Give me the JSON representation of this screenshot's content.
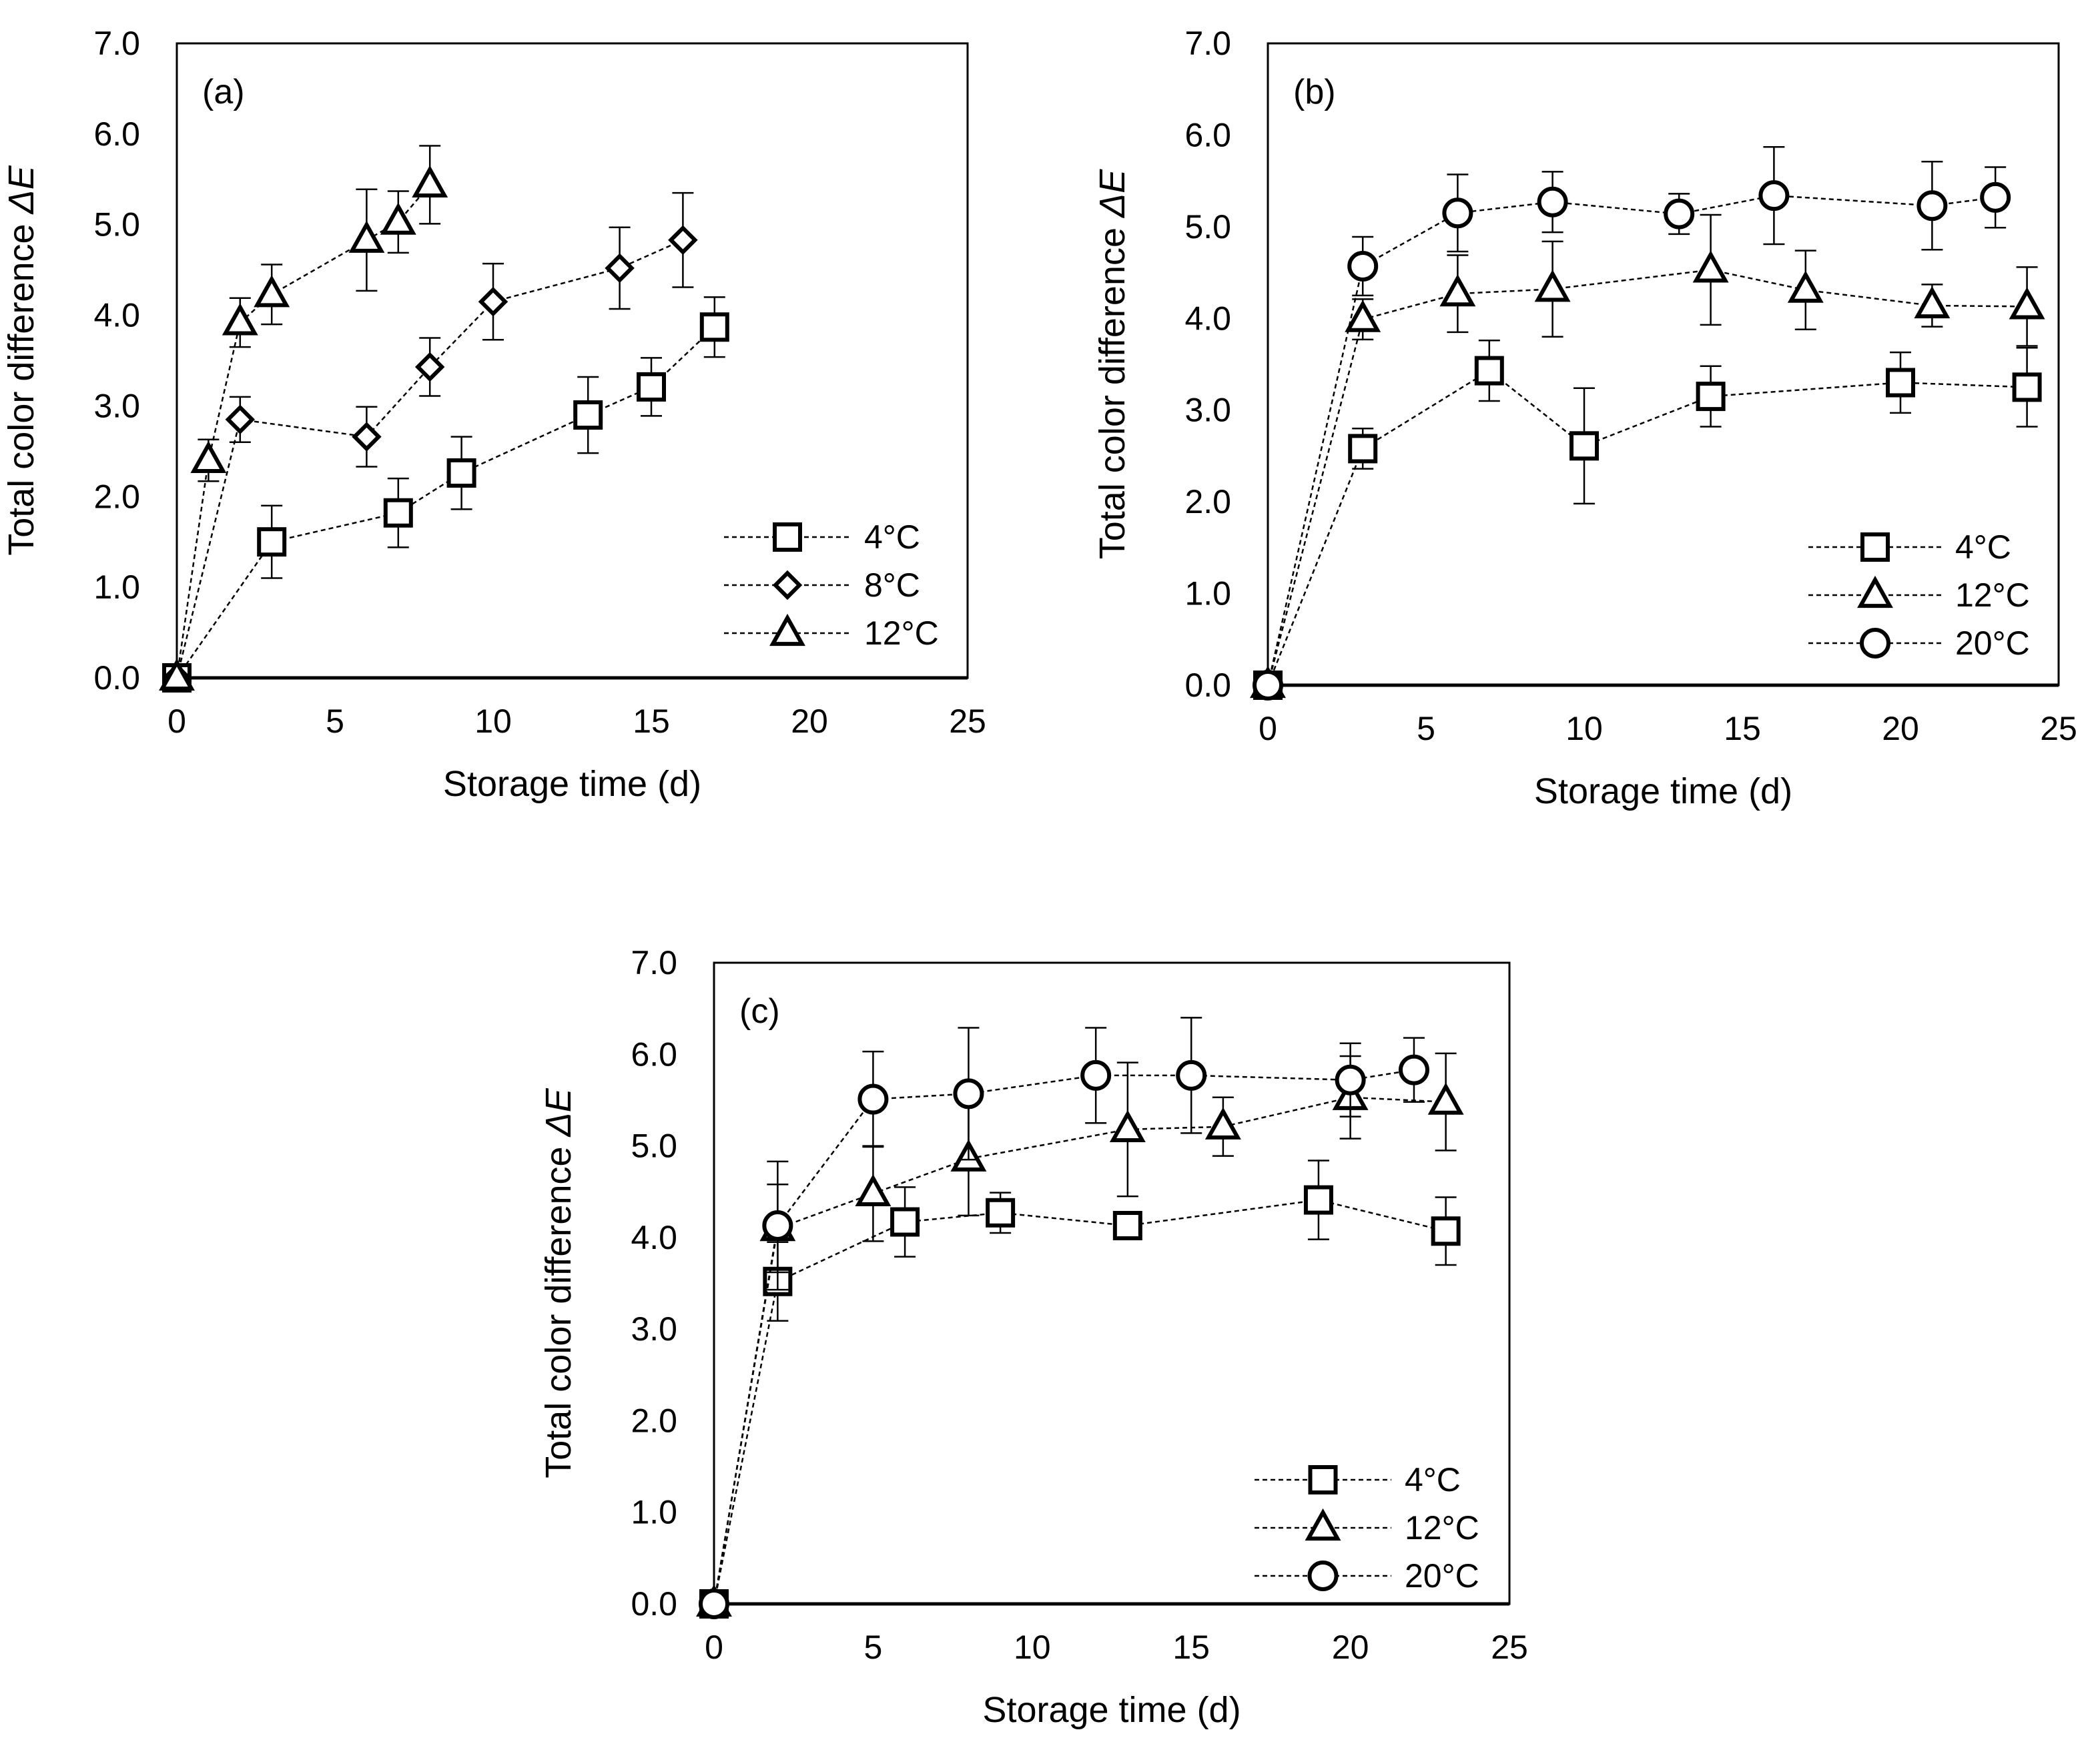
{
  "figure": {
    "panels": [
      "(a)",
      "(b)",
      "(c)"
    ]
  },
  "chart_data": [
    {
      "type": "scatter",
      "panel_label": "(a)",
      "xlabel": "Storage time (d)",
      "ylabel": "Total color difference ",
      "ylabel_italic": "ΔE",
      "xlim": [
        0,
        25
      ],
      "ylim": [
        0,
        7
      ],
      "xticks": [
        "0",
        "5",
        "10",
        "15",
        "20",
        "25"
      ],
      "yticks": [
        "0.0",
        "1.0",
        "2.0",
        "3.0",
        "4.0",
        "5.0",
        "6.0",
        "7.0"
      ],
      "legend_position": "bottom-right",
      "series": [
        {
          "name": "4°C",
          "marker": "square",
          "x": [
            0,
            3,
            7,
            9,
            13,
            15,
            17
          ],
          "y": [
            0,
            1.5,
            1.82,
            2.26,
            2.9,
            3.21,
            3.87
          ],
          "err": [
            0,
            0.4,
            0.38,
            0.4,
            0.42,
            0.32,
            0.33
          ]
        },
        {
          "name": "8°C",
          "marker": "diamond",
          "x": [
            0,
            2,
            6,
            8,
            10,
            14,
            16
          ],
          "y": [
            0,
            2.85,
            2.66,
            3.43,
            4.15,
            4.52,
            4.83
          ],
          "err": [
            0,
            0.25,
            0.33,
            0.32,
            0.42,
            0.45,
            0.52
          ]
        },
        {
          "name": "12°C",
          "marker": "triangle",
          "x": [
            0,
            1,
            2,
            3,
            6,
            7,
            8
          ],
          "y": [
            0,
            2.4,
            3.92,
            4.23,
            4.83,
            5.03,
            5.44
          ],
          "err": [
            0,
            0.23,
            0.27,
            0.33,
            0.56,
            0.34,
            0.43
          ]
        }
      ]
    },
    {
      "type": "scatter",
      "panel_label": "(b)",
      "xlabel": "Storage time (d)",
      "ylabel": "Total color difference ",
      "ylabel_italic": "ΔE",
      "xlim": [
        0,
        25
      ],
      "ylim": [
        0,
        7
      ],
      "xticks": [
        "0",
        "5",
        "10",
        "15",
        "20",
        "25"
      ],
      "yticks": [
        "0.0",
        "1.0",
        "2.0",
        "3.0",
        "4.0",
        "5.0",
        "6.0",
        "7.0"
      ],
      "legend_position": "bottom-right",
      "series": [
        {
          "name": "4°C",
          "marker": "square",
          "x": [
            0,
            3,
            7,
            10,
            14,
            20,
            24
          ],
          "y": [
            0,
            2.58,
            3.43,
            2.61,
            3.15,
            3.3,
            3.25
          ],
          "err": [
            0,
            0.22,
            0.33,
            0.63,
            0.33,
            0.33,
            0.43
          ]
        },
        {
          "name": "12°C",
          "marker": "triangle",
          "x": [
            0,
            3,
            6,
            9,
            14,
            17,
            21,
            24
          ],
          "y": [
            0,
            3.99,
            4.27,
            4.32,
            4.53,
            4.31,
            4.14,
            4.13
          ],
          "err": [
            0,
            0.22,
            0.42,
            0.52,
            0.6,
            0.43,
            0.23,
            0.43
          ]
        },
        {
          "name": "20°C",
          "marker": "circle",
          "x": [
            0,
            3,
            6,
            9,
            13,
            16,
            21,
            23
          ],
          "y": [
            0,
            4.57,
            5.15,
            5.27,
            5.14,
            5.34,
            5.23,
            5.32
          ],
          "err": [
            0,
            0.32,
            0.42,
            0.33,
            0.22,
            0.53,
            0.48,
            0.33
          ]
        }
      ]
    },
    {
      "type": "scatter",
      "panel_label": "(c)",
      "xlabel": "Storage time (d)",
      "ylabel": "Total color difference ",
      "ylabel_italic": "ΔE",
      "xlim": [
        0,
        25
      ],
      "ylim": [
        0,
        7
      ],
      "xticks": [
        "0",
        "5",
        "10",
        "15",
        "20",
        "25"
      ],
      "yticks": [
        "0.0",
        "1.0",
        "2.0",
        "3.0",
        "4.0",
        "5.0",
        "6.0",
        "7.0"
      ],
      "legend_position": "bottom-right",
      "series": [
        {
          "name": "4°C",
          "marker": "square",
          "x": [
            0,
            2,
            6,
            9,
            13,
            19,
            23
          ],
          "y": [
            0,
            3.52,
            4.17,
            4.27,
            4.13,
            4.41,
            4.07
          ],
          "err": [
            0,
            0.43,
            0.38,
            0.22,
            0.0,
            0.43,
            0.37
          ]
        },
        {
          "name": "12°C",
          "marker": "triangle",
          "x": [
            0,
            2,
            5,
            8,
            13,
            16,
            20,
            23
          ],
          "y": [
            0,
            4.1,
            4.48,
            4.86,
            5.18,
            5.21,
            5.53,
            5.48
          ],
          "err": [
            0,
            0.48,
            0.52,
            0.62,
            0.73,
            0.32,
            0.45,
            0.53
          ]
        },
        {
          "name": "20°C",
          "marker": "circle",
          "x": [
            0,
            2,
            5,
            8,
            12,
            15,
            20,
            22
          ],
          "y": [
            0,
            4.13,
            5.51,
            5.57,
            5.77,
            5.77,
            5.72,
            5.83
          ],
          "err": [
            0,
            0.7,
            0.52,
            0.72,
            0.52,
            0.63,
            0.4,
            0.35
          ]
        }
      ]
    }
  ]
}
